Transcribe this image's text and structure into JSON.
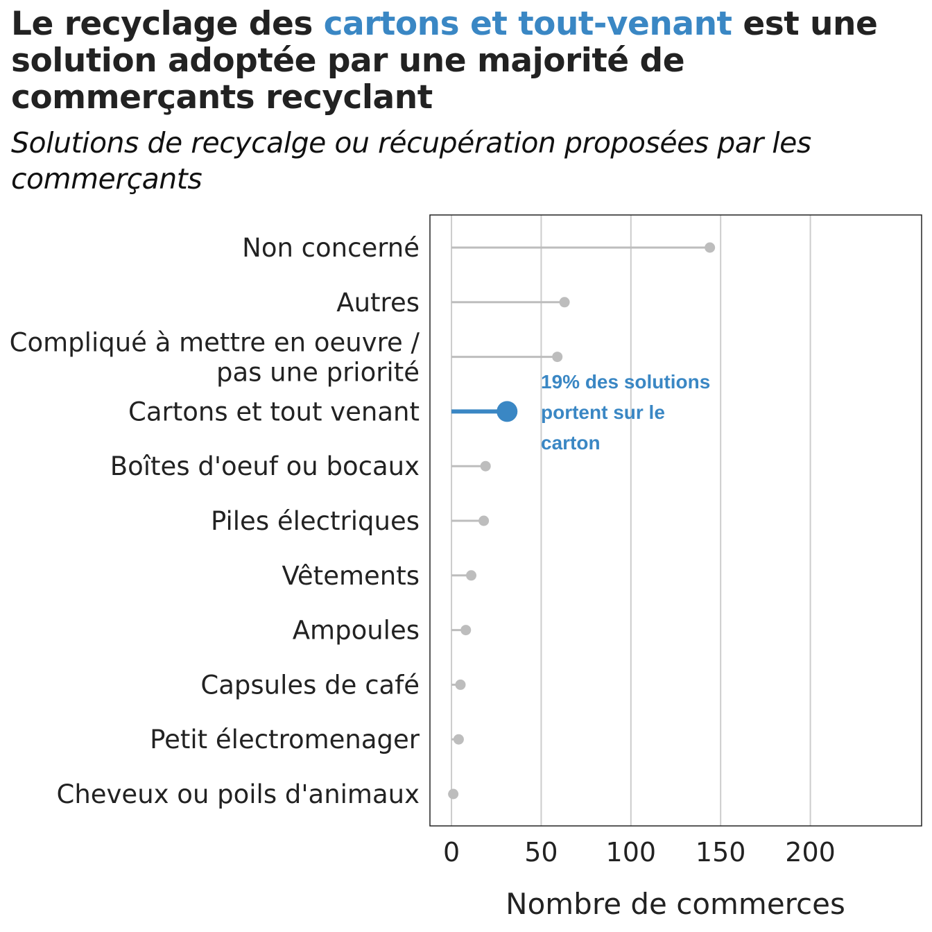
{
  "header": {
    "title_part1": "Le recyclage des ",
    "title_highlight": "cartons et tout-venant",
    "title_part2": " est une solution adoptée par une majorité de commerçants recyclant",
    "subtitle": "Solutions de recycalge ou récupération proposées par les commerçants"
  },
  "colors": {
    "highlight": "#3a87c4",
    "muted": "#bdbdbd",
    "grid": "#cccccc"
  },
  "chart_data": {
    "type": "lollipop",
    "orientation": "horizontal",
    "categories": [
      "Non concerné",
      "Autres",
      "Compliqué à mettre en oeuvre / pas une priorité",
      "Cartons et tout venant",
      "Boîtes d'oeuf ou bocaux",
      "Piles électriques",
      "Vêtements",
      "Ampoules",
      "Capsules de café",
      "Petit électromenager",
      "Cheveux ou poils d'animaux"
    ],
    "values": [
      144,
      63,
      59,
      31,
      19,
      18,
      11,
      8,
      5,
      4,
      1
    ],
    "highlight_category": "Cartons et tout venant",
    "xlabel": "Nombre de commerces",
    "ylabel": "",
    "xlim": [
      -12,
      262
    ],
    "xticks": [
      0,
      50,
      100,
      150,
      200
    ],
    "grid": true,
    "annotation": {
      "lines": [
        "19% des solutions",
        "portent sur le",
        "carton"
      ]
    }
  }
}
